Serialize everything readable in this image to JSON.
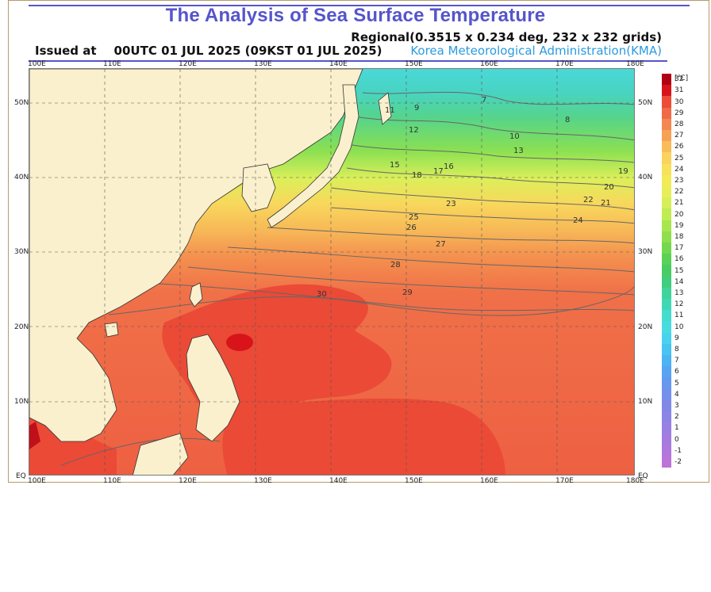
{
  "title": "The Analysis of Sea Surface Temperature",
  "subtitle": "Regional(0.3515 x 0.234 deg, 232 x 232 grids)",
  "issued_label": "Issued at",
  "issued_time": "00UTC 01 JUL 2025 (09KST 01 JUL 2025)",
  "agency": "Korea Meteorological Administration(KMA)",
  "map": {
    "x_ticks": [
      "100E",
      "110E",
      "120E",
      "130E",
      "140E",
      "150E",
      "160E",
      "170E",
      "180E"
    ],
    "y_ticks": [
      "EQ",
      "10N",
      "20N",
      "30N",
      "40N",
      "50N"
    ],
    "contour_labels": [
      "7",
      "8",
      "9",
      "10",
      "11",
      "12",
      "13",
      "15",
      "16",
      "17",
      "18",
      "19",
      "20",
      "21",
      "22",
      "23",
      "24",
      "25",
      "26",
      "27",
      "28",
      "29",
      "30"
    ],
    "land_color": "#faf0cd",
    "coast_color": "#333333"
  },
  "colorbar": {
    "unit": "[℃]",
    "levels": [
      "32",
      "31",
      "30",
      "29",
      "28",
      "27",
      "26",
      "25",
      "24",
      "23",
      "22",
      "21",
      "20",
      "19",
      "18",
      "17",
      "16",
      "15",
      "14",
      "13",
      "12",
      "11",
      "10",
      "9",
      "8",
      "7",
      "6",
      "5",
      "4",
      "3",
      "2",
      "1",
      "0",
      "-1",
      "-2"
    ],
    "colors": [
      "#b00012",
      "#d8141a",
      "#ec4c38",
      "#f06a48",
      "#f48652",
      "#f6a156",
      "#f8bc5a",
      "#f9d35c",
      "#f8e15a",
      "#f3ea58",
      "#e8ee5a",
      "#d6ef58",
      "#c0ec52",
      "#a8e64e",
      "#8edf4c",
      "#74d84e",
      "#5ad256",
      "#48cd64",
      "#40cd7e",
      "#40d49a",
      "#40d8b4",
      "#44dccc",
      "#48dce0",
      "#48d2ee",
      "#48c4f2",
      "#4ab4f4",
      "#58a4f4",
      "#6698f0",
      "#7490ec",
      "#8088e8",
      "#8c84e6",
      "#9a80e2",
      "#a47ce0",
      "#b078dc",
      "#bc74d8"
    ]
  }
}
